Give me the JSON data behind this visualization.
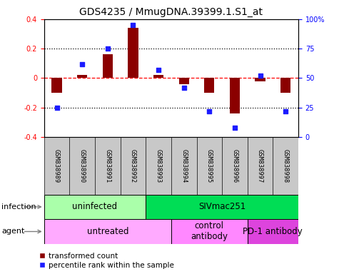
{
  "title": "GDS4235 / MmugDNA.39399.1.S1_at",
  "samples": [
    "GSM838989",
    "GSM838990",
    "GSM838991",
    "GSM838992",
    "GSM838993",
    "GSM838994",
    "GSM838995",
    "GSM838996",
    "GSM838997",
    "GSM838998"
  ],
  "transformed_count": [
    -0.1,
    0.02,
    0.16,
    0.34,
    0.02,
    -0.04,
    -0.1,
    -0.24,
    -0.02,
    -0.1
  ],
  "percentile_rank": [
    25,
    62,
    75,
    95,
    57,
    42,
    22,
    8,
    52,
    22
  ],
  "bar_color": "#8B0000",
  "dot_color": "#1C1CFF",
  "ylim_left": [
    -0.4,
    0.4
  ],
  "ylim_right": [
    0,
    100
  ],
  "yticks_left": [
    -0.4,
    -0.2,
    0.0,
    0.2,
    0.4
  ],
  "ytick_labels_left": [
    "-0.4",
    "-0.2",
    "0",
    "0.2",
    "0.4"
  ],
  "yticks_right": [
    0,
    25,
    50,
    75,
    100
  ],
  "ytick_labels_right": [
    "0",
    "25",
    "50",
    "75",
    "100%"
  ],
  "hline_dotted": [
    0.2,
    -0.2
  ],
  "hline_dashed_red": 0.0,
  "infection_groups": [
    {
      "label": "uninfected",
      "start": 0,
      "end": 4,
      "color": "#AAFFAA"
    },
    {
      "label": "SIVmac251",
      "start": 4,
      "end": 10,
      "color": "#00DD55"
    }
  ],
  "agent_groups": [
    {
      "label": "untreated",
      "start": 0,
      "end": 5,
      "color": "#FFAAFF"
    },
    {
      "label": "control\nantibody",
      "start": 5,
      "end": 8,
      "color": "#FF88FF"
    },
    {
      "label": "PD-1 antibody",
      "start": 8,
      "end": 10,
      "color": "#DD44DD"
    }
  ],
  "infection_label": "infection",
  "agent_label": "agent",
  "legend_bar_label": "transformed count",
  "legend_dot_label": "percentile rank within the sample",
  "sample_box_color": "#C8C8C8",
  "title_fontsize": 10,
  "tick_fontsize": 7,
  "label_fontsize": 8,
  "bar_width": 0.4
}
